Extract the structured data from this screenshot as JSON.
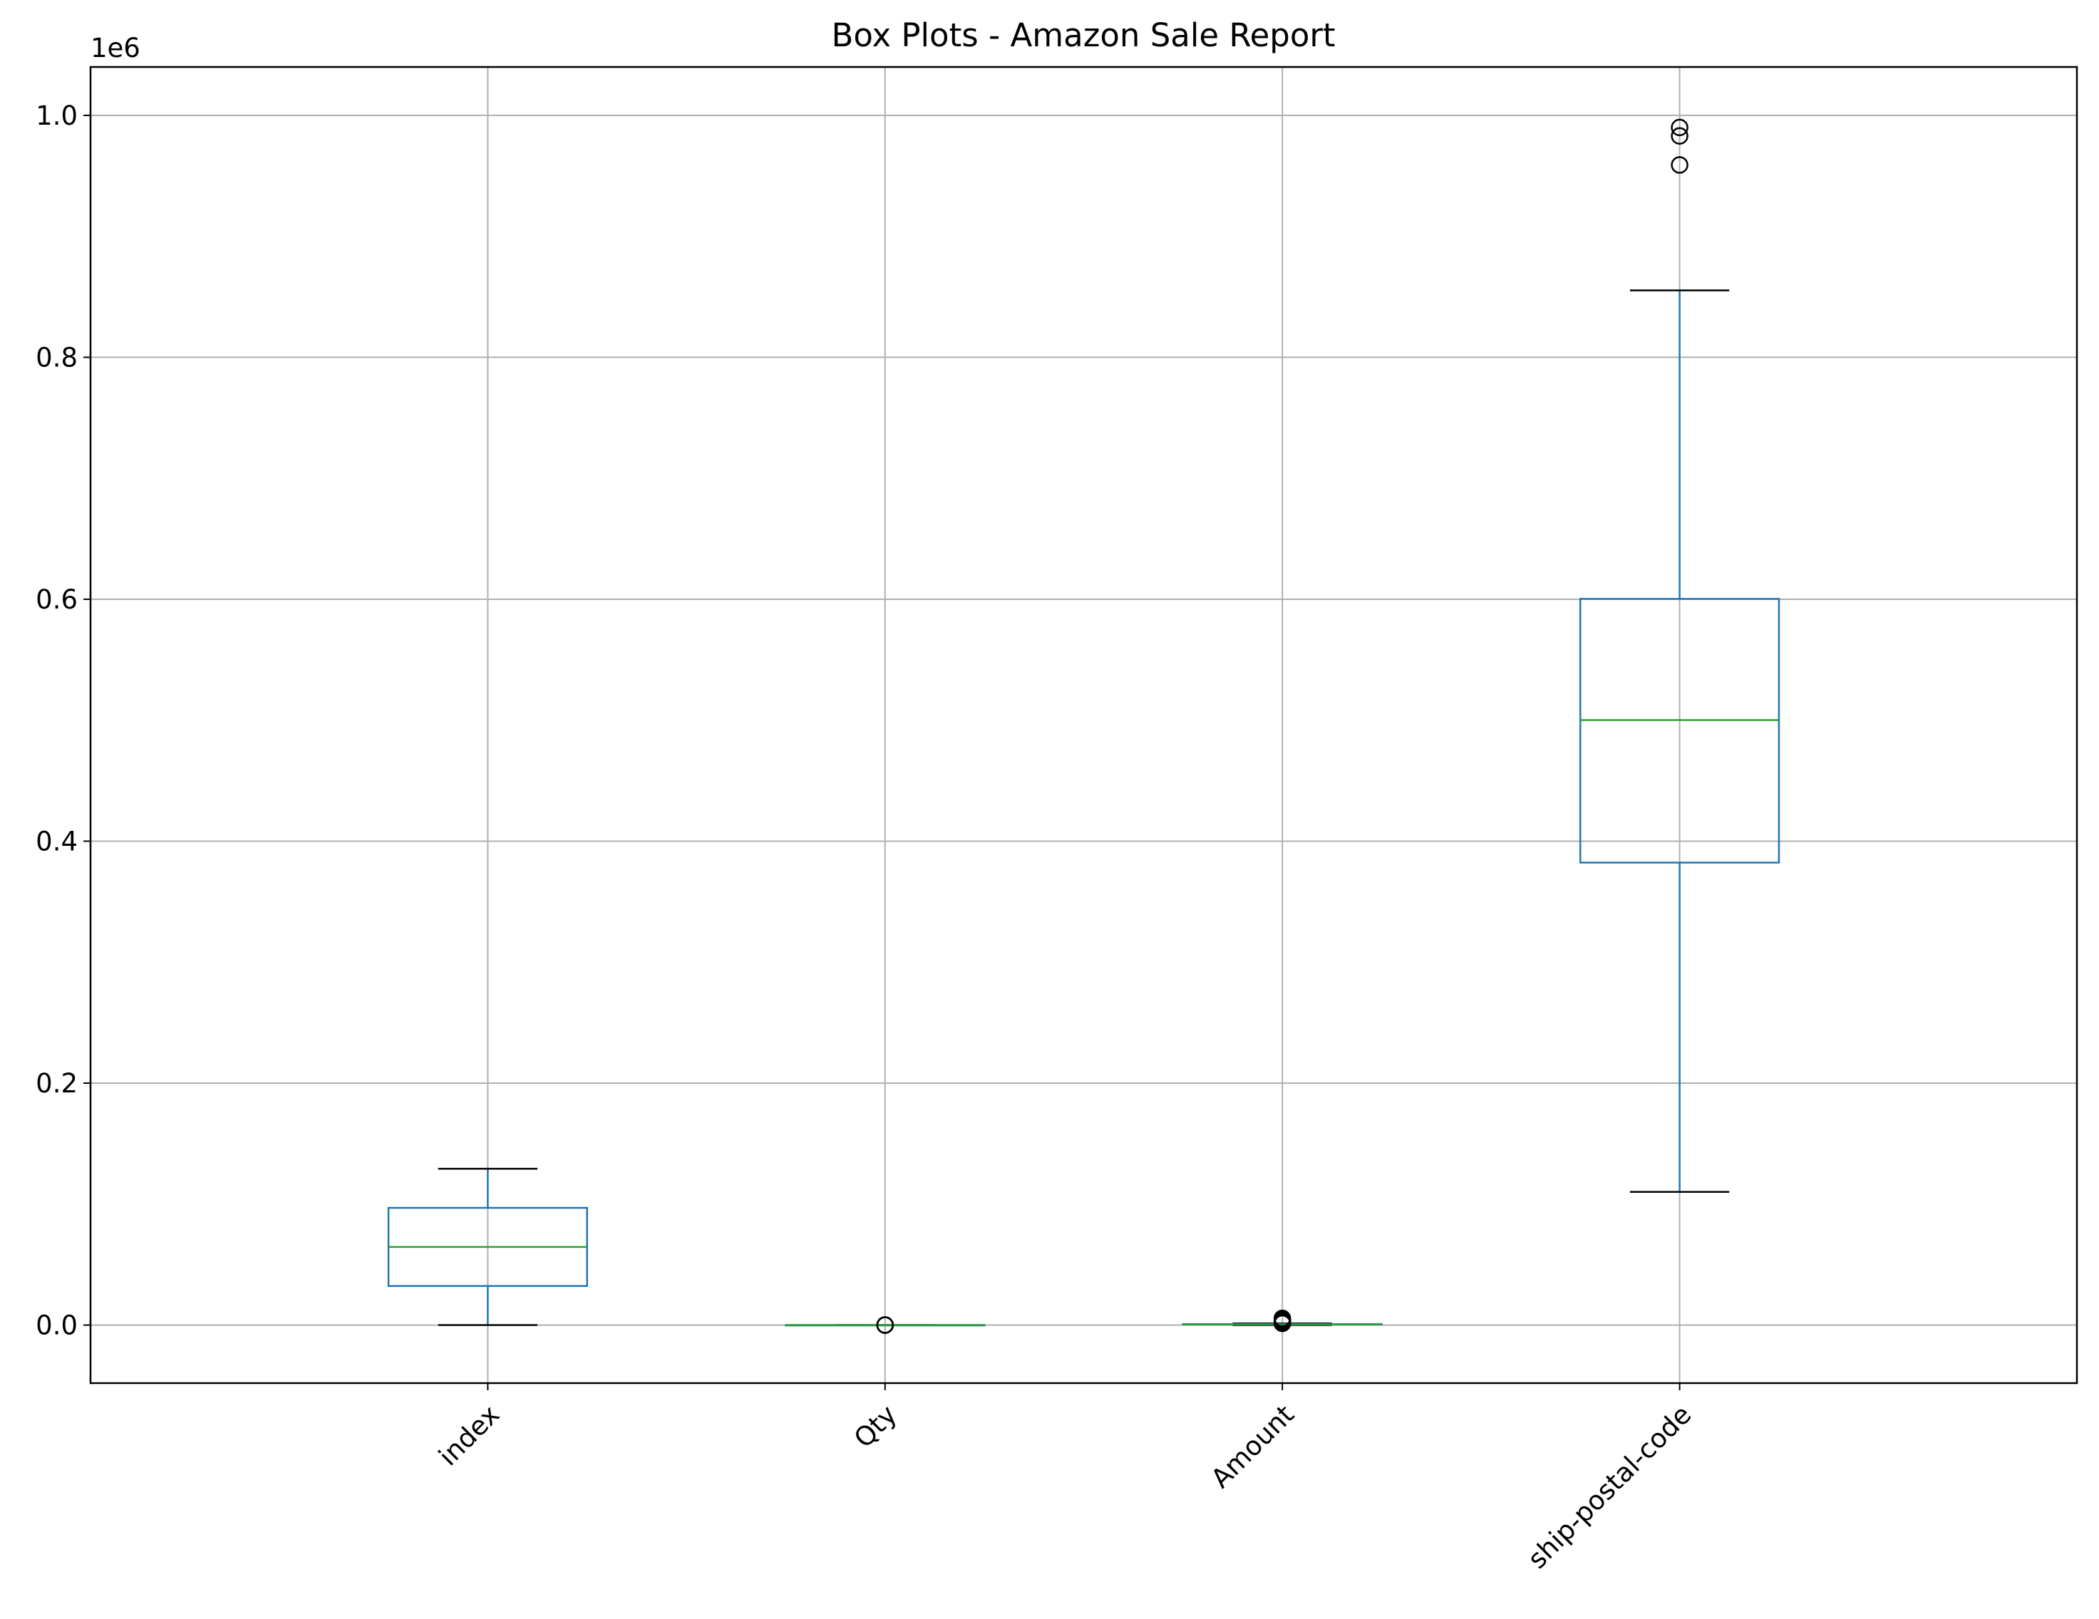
{
  "chart_data": {
    "type": "box",
    "title": "Box Plots - Amazon Sale Report",
    "xlabel": "",
    "ylabel": "",
    "y_offset_label": "1e6",
    "ylim": [
      -0.048,
      1.04
    ],
    "y_ticks": [
      0.0,
      0.2,
      0.4,
      0.6,
      0.8,
      1.0
    ],
    "y_tick_labels": [
      "0.0",
      "0.2",
      "0.4",
      "0.6",
      "0.8",
      "1.0"
    ],
    "grid": true,
    "categories": [
      "index",
      "Qty",
      "Amount",
      "ship-postal-code"
    ],
    "boxes": [
      {
        "name": "index",
        "whisker_low": 0.0,
        "q1": 0.0323,
        "median": 0.0646,
        "q3": 0.0969,
        "whisker_high": 0.1292,
        "outliers": []
      },
      {
        "name": "Qty",
        "whisker_low": 1e-06,
        "q1": 1e-06,
        "median": 1e-06,
        "q3": 1e-06,
        "whisker_high": 1e-06,
        "outliers": [
          0.0,
          0.0,
          2e-06,
          5e-06
        ]
      },
      {
        "name": "Amount",
        "whisker_low": 0.0,
        "q1": 0.000449,
        "median": 0.000605,
        "q3": 0.000788,
        "whisker_high": 0.0013,
        "outliers": [
          0.0014,
          0.0025,
          0.0035,
          0.0045,
          0.0055
        ]
      },
      {
        "name": "ship-postal-code",
        "whisker_low": 0.1101,
        "q1": 0.3823,
        "median": 0.5001,
        "q3": 0.6003,
        "whisker_high": 0.8553,
        "outliers": [
          0.959,
          0.983,
          0.99
        ]
      }
    ],
    "colors": {
      "box": "#1f77b4",
      "median": "#2ca02c",
      "cap": "#000000",
      "grid": "#b0b0b0",
      "axes": "#000000"
    }
  }
}
